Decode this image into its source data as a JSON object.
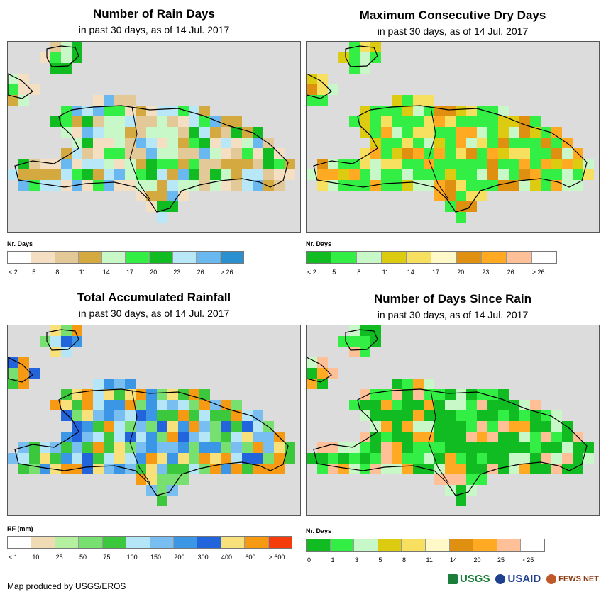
{
  "panels": {
    "p1": {
      "title": "Number of Rain Days",
      "subtitle": "in past 30 days, as of 14 Jul. 2017",
      "legend_title": "Nr. Days",
      "legend_labels": [
        "< 2",
        "5",
        "8",
        "11",
        "14",
        "17",
        "20",
        "23",
        "26",
        "> 26"
      ],
      "legend_colors": [
        "#ffffff",
        "#f5dfc3",
        "#e3c898",
        "#d4a940",
        "#c8f7c8",
        "#33ee44",
        "#11bb22",
        "#b8e8f8",
        "#6ab8f0",
        "#2a90d0"
      ]
    },
    "p2": {
      "title": "Maximum Consecutive Dry Days",
      "subtitle": "in past 30 days, as of 14 Jul. 2017",
      "legend_title": "Nr. Days",
      "legend_labels": [
        "< 2",
        "5",
        "8",
        "11",
        "14",
        "17",
        "20",
        "23",
        "26",
        "> 26"
      ],
      "legend_colors": [
        "#11bb22",
        "#33ee44",
        "#c8f7c8",
        "#dccb10",
        "#f7e060",
        "#fff8c8",
        "#e09010",
        "#ffaa22",
        "#ffc098",
        "#ffffff"
      ]
    },
    "p3": {
      "title": "Total Accumulated Rainfall",
      "subtitle": "in past 30 days, as of 14 Jul. 2017",
      "legend_title": "RF (mm)",
      "legend_labels": [
        "< 1",
        "10",
        "25",
        "50",
        "75",
        "100",
        "150",
        "200",
        "300",
        "400",
        "600",
        "> 600"
      ],
      "legend_colors": [
        "#ffffff",
        "#f0dcb4",
        "#b4f0a0",
        "#78e070",
        "#3cc83c",
        "#b4e6f8",
        "#78bef0",
        "#3c96e6",
        "#2264dc",
        "#f8e07a",
        "#f59a12",
        "#f53c0a"
      ]
    },
    "p4": {
      "title": "Number of Days Since Rain",
      "subtitle": "in past 30 days, as of 14 Jul. 2017",
      "legend_title": "Nr. Days",
      "legend_labels": [
        "0",
        "1",
        "3",
        "5",
        "8",
        "11",
        "14",
        "20",
        "25",
        "> 25"
      ],
      "legend_colors": [
        "#11bb22",
        "#33ee44",
        "#c8f7c8",
        "#dccb10",
        "#f7e060",
        "#fff8c8",
        "#e09010",
        "#ffaa22",
        "#ffc098",
        "#ffffff"
      ]
    }
  },
  "footer": {
    "credit": "Map produced by USGS/EROS",
    "logos": [
      "USGS",
      "USAID",
      "FEWS NET"
    ]
  },
  "colors": {
    "map_background": "#dcdcdc",
    "outline": "#000000"
  }
}
